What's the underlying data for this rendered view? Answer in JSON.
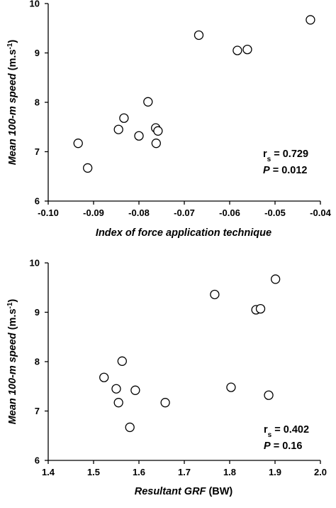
{
  "chart_data": [
    {
      "type": "scatter",
      "xlabel": "Index of force application technique",
      "ylabel": {
        "italic": "Mean 100-m speed",
        "unit": "(m.s",
        "sup": "-1",
        "close": ")"
      },
      "xlim": [
        -0.1,
        -0.04
      ],
      "ylim": [
        6,
        10
      ],
      "xticks": [
        "-0.10",
        "-0.09",
        "-0.08",
        "-0.07",
        "-0.06",
        "-0.05",
        "-0.04"
      ],
      "yticks": [
        "6",
        "7",
        "8",
        "9",
        "10"
      ],
      "x": [
        -0.0934,
        -0.0913,
        -0.0845,
        -0.0833,
        -0.08,
        -0.078,
        -0.0763,
        -0.0762,
        -0.0758,
        -0.0668,
        -0.0583,
        -0.0561,
        -0.0422
      ],
      "y": [
        7.17,
        6.67,
        7.45,
        7.68,
        7.32,
        8.01,
        7.48,
        7.17,
        7.42,
        9.36,
        9.05,
        9.07,
        9.67
      ],
      "stats": {
        "r_main": "r",
        "r_sub": "s",
        "r_value": " = 0.729",
        "p_main": "P",
        "p_value": " = 0.012"
      },
      "grid": false,
      "legend": "none"
    },
    {
      "type": "scatter",
      "xlabel": {
        "italic": "Resultant GRF",
        "plain": " (BW)"
      },
      "ylabel": {
        "italic": "Mean 100-m speed",
        "unit": "(m.s",
        "sup": "-1",
        "close": ")"
      },
      "xlim": [
        1.4,
        2.0
      ],
      "ylim": [
        6,
        10
      ],
      "xticks": [
        "1.4",
        "1.5",
        "1.6",
        "1.7",
        "1.8",
        "1.9",
        "2.0"
      ],
      "yticks": [
        "6",
        "7",
        "8",
        "9",
        "10"
      ],
      "x": [
        1.523,
        1.55,
        1.555,
        1.563,
        1.58,
        1.592,
        1.658,
        1.767,
        1.803,
        1.858,
        1.868,
        1.886,
        1.901
      ],
      "y": [
        7.68,
        7.45,
        7.17,
        8.01,
        6.67,
        7.42,
        7.17,
        9.36,
        7.48,
        9.05,
        9.07,
        7.32,
        9.67
      ],
      "stats": {
        "r_main": "r",
        "r_sub": "s",
        "r_value": " = 0.402",
        "p_main": "P",
        "p_value": " = 0.16"
      },
      "grid": false,
      "legend": "none"
    }
  ]
}
